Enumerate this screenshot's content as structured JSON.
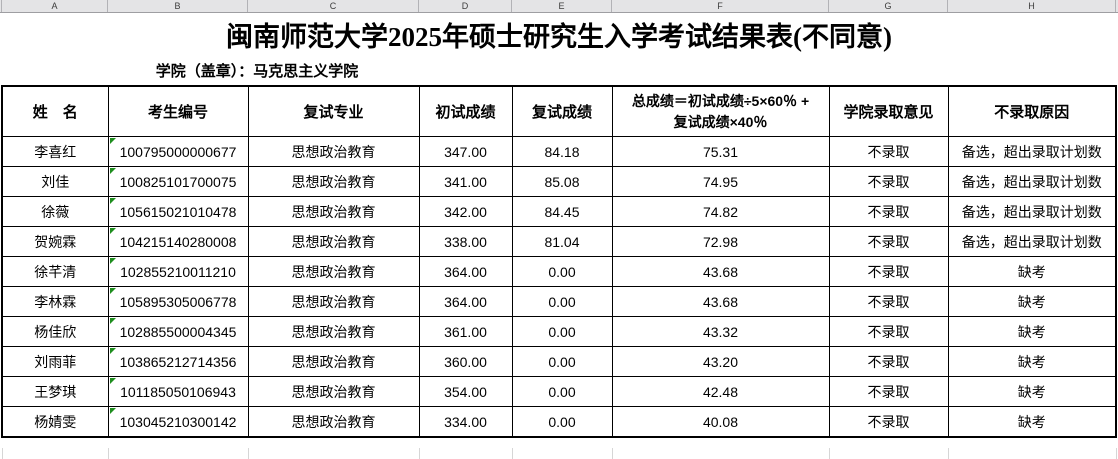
{
  "sheet": {
    "column_letters": [
      "A",
      "B",
      "C",
      "D",
      "E",
      "F",
      "G",
      "H"
    ],
    "title": "闽南师范大学2025年硕士研究生入学考试结果表(不同意)",
    "subtitle": "学院（盖章）：马克思主义学院",
    "table": {
      "headers": [
        "姓　名",
        "考生编号",
        "复试专业",
        "初试成绩",
        "复试成绩",
        "总成绩＝初试成绩÷5×60％ +\n复试成绩×40％",
        "学院录取意见",
        "不录取原因"
      ],
      "header_keys": [
        "name",
        "candidate-id",
        "major",
        "initial-score",
        "retest-score",
        "total-score",
        "admission-opinion",
        "rejection-reason"
      ],
      "rows": [
        [
          "李喜红",
          "100795000000677",
          "思想政治教育",
          "347.00",
          "84.18",
          "75.31",
          "不录取",
          "备选，超出录取计划数"
        ],
        [
          "刘佳",
          "100825101700075",
          "思想政治教育",
          "341.00",
          "85.08",
          "74.95",
          "不录取",
          "备选，超出录取计划数"
        ],
        [
          "徐薇",
          "105615021010478",
          "思想政治教育",
          "342.00",
          "84.45",
          "74.82",
          "不录取",
          "备选，超出录取计划数"
        ],
        [
          "贺婉霖",
          "104215140280008",
          "思想政治教育",
          "338.00",
          "81.04",
          "72.98",
          "不录取",
          "备选，超出录取计划数"
        ],
        [
          "徐芊清",
          "102855210011210",
          "思想政治教育",
          "364.00",
          "0.00",
          "43.68",
          "不录取",
          "缺考"
        ],
        [
          "李林霖",
          "105895305006778",
          "思想政治教育",
          "364.00",
          "0.00",
          "43.68",
          "不录取",
          "缺考"
        ],
        [
          "杨佳欣",
          "102885500004345",
          "思想政治教育",
          "361.00",
          "0.00",
          "43.32",
          "不录取",
          "缺考"
        ],
        [
          "刘雨菲",
          "103865212714356",
          "思想政治教育",
          "360.00",
          "0.00",
          "43.20",
          "不录取",
          "缺考"
        ],
        [
          "王梦琪",
          "101185050106943",
          "思想政治教育",
          "354.00",
          "0.00",
          "42.48",
          "不录取",
          "缺考"
        ],
        [
          "杨婧雯",
          "103045210300142",
          "思想政治教育",
          "334.00",
          "0.00",
          "40.08",
          "不录取",
          "缺考"
        ]
      ]
    },
    "colors": {
      "table_border": "#000000",
      "column_strip_bg": "#e4e4e6",
      "gridline": "#d6d6d6",
      "text_format_indicator": "#1e8e1e",
      "text": "#000000",
      "background": "#ffffff"
    }
  }
}
